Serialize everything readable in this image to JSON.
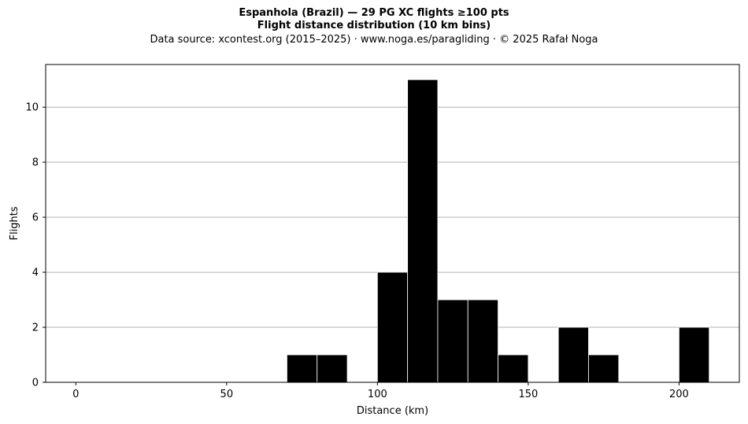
{
  "chart_data": {
    "type": "bar",
    "title": "Espanhola (Brazil)  —  29 PG XC flights ≥100 pts",
    "subtitle": "Flight distance distribution (10 km bins)",
    "source_note": "Data source: xcontest.org (2015–2025)  ·  www.noga.es/paragliding  ·  © 2025 Rafał Noga",
    "xlabel": "Distance (km)",
    "ylabel": "Flights",
    "xlim": [
      -10,
      220
    ],
    "ylim": [
      0,
      11.55
    ],
    "xticks": [
      0,
      50,
      100,
      150,
      200
    ],
    "yticks": [
      0,
      2,
      4,
      6,
      8,
      10
    ],
    "grid": "horizontal",
    "bin_width": 10,
    "bins": [
      {
        "start": 70,
        "count": 1
      },
      {
        "start": 80,
        "count": 1
      },
      {
        "start": 100,
        "count": 4
      },
      {
        "start": 110,
        "count": 11
      },
      {
        "start": 120,
        "count": 3
      },
      {
        "start": 130,
        "count": 3
      },
      {
        "start": 140,
        "count": 1
      },
      {
        "start": 160,
        "count": 2
      },
      {
        "start": 170,
        "count": 1
      },
      {
        "start": 200,
        "count": 2
      }
    ],
    "colors": {
      "bar": "#000000",
      "bar_edge": "#ffffff",
      "grid": "#b0b0b0"
    }
  }
}
